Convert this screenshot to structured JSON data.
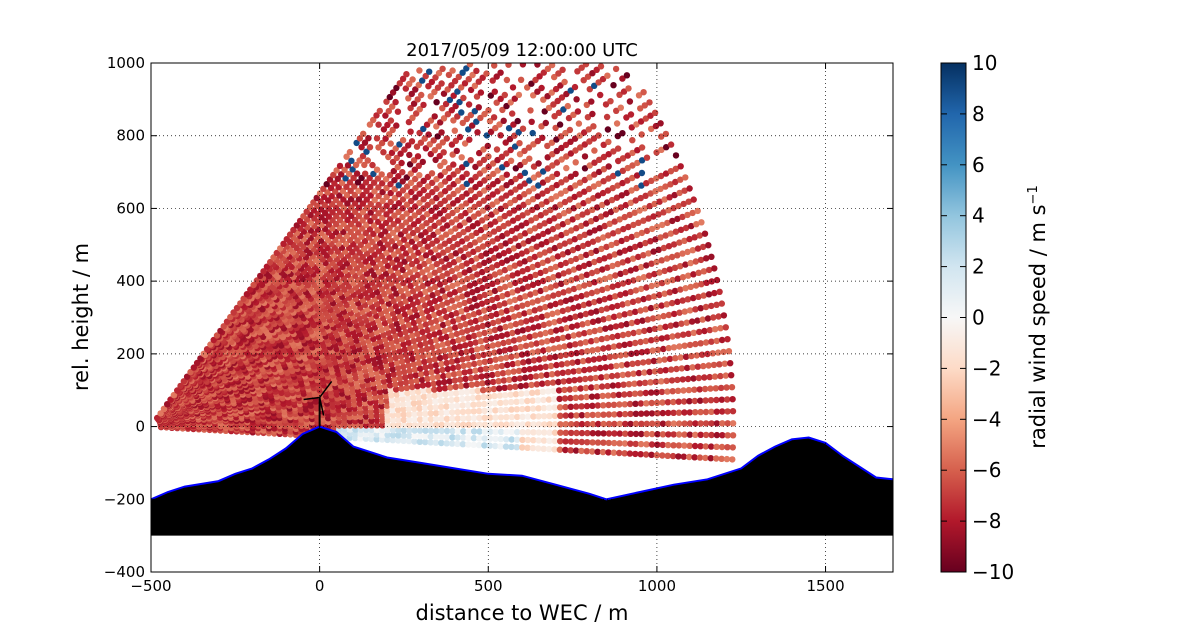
{
  "chart_data": {
    "type": "heatmap",
    "title": "2017/05/09 12:00:00 UTC",
    "xlabel": "distance to WEC / m",
    "ylabel": "rel. height / m",
    "xlim": [
      -500,
      1700
    ],
    "ylim": [
      -400,
      1000
    ],
    "x_ticks": [
      "−500",
      "0",
      "500",
      "1000",
      "1500"
    ],
    "y_ticks": [
      "−400",
      "−200",
      "0",
      "200",
      "400",
      "600",
      "800",
      "1000"
    ],
    "x_tick_values": [
      -500,
      0,
      500,
      1000,
      1500
    ],
    "y_tick_values": [
      -400,
      -200,
      0,
      200,
      400,
      600,
      800,
      1000
    ],
    "grid": true,
    "colormap": "RdBu",
    "colorbar": {
      "label": "radial wind speed / m s",
      "label_superscript": "−1",
      "range": [
        -10,
        10
      ],
      "tick_values": [
        10,
        8,
        6,
        4,
        2,
        0,
        -2,
        -4,
        -6,
        -8,
        -10
      ],
      "ticks": [
        "10",
        "8",
        "6",
        "4",
        "2",
        "0",
        "−2",
        "−4",
        "−6",
        "−8",
        "−10"
      ]
    },
    "scan_sector": {
      "origin": [
        -500,
        0
      ],
      "max_range_m": 1740,
      "elevation_deg": [
        -3,
        53
      ],
      "typical_radial_speed": -7
    },
    "terrain_profile": {
      "x": [
        -500,
        -450,
        -400,
        -300,
        -250,
        -200,
        -150,
        -100,
        -50,
        0,
        50,
        100,
        200,
        300,
        400,
        500,
        600,
        700,
        800,
        850,
        950,
        1050,
        1150,
        1250,
        1300,
        1350,
        1400,
        1450,
        1500,
        1550,
        1600,
        1650,
        1700
      ],
      "y": [
        -200,
        -180,
        -165,
        -150,
        -130,
        -115,
        -90,
        -60,
        -20,
        0,
        -15,
        -55,
        -85,
        -100,
        -115,
        -130,
        -135,
        -160,
        -185,
        -200,
        -180,
        -160,
        -145,
        -115,
        -80,
        -55,
        -35,
        -30,
        -45,
        -80,
        -110,
        -140,
        -145
      ],
      "baseline": -300,
      "color": "#000000",
      "outline_color": "#0000ff"
    },
    "turbine": {
      "x": 0,
      "hub_height": 80
    }
  }
}
